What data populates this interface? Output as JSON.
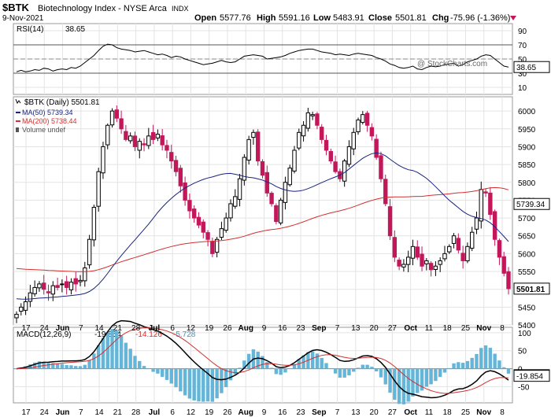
{
  "header": {
    "symbol": "$BTK",
    "name": "Biotechnology Index - NYSE Arca",
    "exchange": "INDX",
    "date": "9-Nov-2021",
    "open_label": "Open",
    "open": "5577.76",
    "high_label": "High",
    "high": "5591.16",
    "low_label": "Low",
    "low": "5483.91",
    "close_label": "Close",
    "close": "5501.81",
    "chg_label": "Chg",
    "chg": "-75.96 (-1.36%)",
    "watermark": "@ StockCharts.com"
  },
  "rsi": {
    "label": "RSI(14)",
    "value": "38.65",
    "ticks": [
      "90",
      "70",
      "50",
      "30",
      "10"
    ],
    "flag": "38.65",
    "color": "#000000"
  },
  "price": {
    "legend_title": "$BTK (Daily) 5501.81",
    "legend": [
      {
        "key": "ma50",
        "text": "MA(50) 5739.34",
        "color": "#1a237e"
      },
      {
        "key": "ma200",
        "text": "MA(200) 5738.44",
        "color": "#d32f2f"
      },
      {
        "key": "vol",
        "text": "Volume undef",
        "color": "#555555"
      }
    ],
    "ticks": [
      "6000",
      "5950",
      "5900",
      "5850",
      "5800",
      "5750",
      "5700",
      "5650",
      "5600",
      "5550",
      "5500",
      "5450",
      "5400"
    ],
    "flags": {
      "ma": "5739.34",
      "close": "5501.81"
    }
  },
  "macd": {
    "label": "MACD(12,26,9)",
    "values": [
      "-19.854",
      "-14.126",
      "-5.728"
    ],
    "ticks": [
      "100",
      "50",
      "0",
      "-50"
    ],
    "flags": {
      "macd": "-19.854",
      "signal": "-14.126"
    }
  },
  "xaxis": {
    "labels": [
      {
        "t": "17",
        "b": false
      },
      {
        "t": "24",
        "b": false
      },
      {
        "t": "Jun",
        "b": true
      },
      {
        "t": "7",
        "b": false
      },
      {
        "t": "14",
        "b": false
      },
      {
        "t": "21",
        "b": false
      },
      {
        "t": "28",
        "b": false
      },
      {
        "t": "Jul",
        "b": true
      },
      {
        "t": "6",
        "b": false
      },
      {
        "t": "12",
        "b": false
      },
      {
        "t": "19",
        "b": false
      },
      {
        "t": "26",
        "b": false
      },
      {
        "t": "Aug",
        "b": true
      },
      {
        "t": "9",
        "b": false
      },
      {
        "t": "16",
        "b": false
      },
      {
        "t": "23",
        "b": false
      },
      {
        "t": "Sep",
        "b": true
      },
      {
        "t": "7",
        "b": false
      },
      {
        "t": "13",
        "b": false
      },
      {
        "t": "20",
        "b": false
      },
      {
        "t": "27",
        "b": false
      },
      {
        "t": "Oct",
        "b": true
      },
      {
        "t": "11",
        "b": false
      },
      {
        "t": "18",
        "b": false
      },
      {
        "t": "25",
        "b": false
      },
      {
        "t": "Nov",
        "b": true
      },
      {
        "t": "8",
        "b": false
      }
    ]
  },
  "colors": {
    "up": "#000000",
    "down": "#c2185b",
    "ma50": "#1a237e",
    "ma200": "#d32f2f",
    "rsi_fill": "#3f7f3f",
    "hist": "#64b5d8"
  },
  "chart_data": [
    {
      "type": "line",
      "title": "RSI(14) 38.65",
      "ylim": [
        0,
        100
      ],
      "overbought": 70,
      "oversold": 30,
      "series": [
        {
          "name": "RSI(14)",
          "values": [
            32,
            34,
            32,
            33,
            35,
            34,
            37,
            36,
            33,
            35,
            36,
            35,
            38,
            37,
            40,
            45,
            50,
            55,
            62,
            68,
            71,
            70,
            66,
            64,
            63,
            62,
            60,
            61,
            62,
            60,
            58,
            56,
            57,
            55,
            52,
            54,
            53,
            50,
            48,
            46,
            44,
            42,
            43,
            44,
            46,
            48,
            46,
            45,
            46,
            50,
            54,
            55,
            56,
            55,
            54,
            50,
            51,
            52,
            53,
            55,
            58,
            60,
            62,
            63,
            64,
            64,
            62,
            60,
            59,
            58,
            56,
            57,
            56,
            55,
            57,
            58,
            57,
            56,
            55,
            52,
            50,
            47,
            43,
            41,
            38,
            37,
            38,
            40,
            36,
            35,
            38,
            40,
            39,
            40,
            42,
            43,
            44,
            40,
            42,
            46,
            48,
            50,
            54,
            56,
            55,
            50,
            45,
            40,
            38.65
          ]
        }
      ]
    },
    {
      "type": "candlestick",
      "title": "$BTK (Daily) 5501.81",
      "ylim": [
        5400,
        6040
      ],
      "ohlc_close": [
        5430,
        5450,
        5465,
        5490,
        5505,
        5515,
        5500,
        5490,
        5510,
        5505,
        5515,
        5505,
        5520,
        5515,
        5525,
        5560,
        5640,
        5730,
        5830,
        5900,
        5960,
        6000,
        5980,
        5950,
        5920,
        5930,
        5900,
        5915,
        5905,
        5930,
        5920,
        5935,
        5905,
        5890,
        5860,
        5830,
        5790,
        5750,
        5720,
        5700,
        5680,
        5660,
        5640,
        5600,
        5640,
        5670,
        5700,
        5740,
        5760,
        5810,
        5870,
        5920,
        5940,
        5860,
        5820,
        5770,
        5740,
        5690,
        5750,
        5800,
        5840,
        5890,
        5940,
        5960,
        5995,
        5990,
        5960,
        5920,
        5890,
        5860,
        5830,
        5810,
        5860,
        5900,
        5940,
        5975,
        5990,
        5960,
        5930,
        5870,
        5810,
        5740,
        5650,
        5590,
        5565,
        5570,
        5590,
        5620,
        5590,
        5565,
        5580,
        5555,
        5565,
        5580,
        5600,
        5620,
        5650,
        5610,
        5580,
        5620,
        5660,
        5700,
        5780,
        5770,
        5710,
        5640,
        5590,
        5545,
        5501.81
      ],
      "series": [
        {
          "name": "MA(50)",
          "last": 5739.34
        },
        {
          "name": "MA(200)",
          "last": 5738.44
        }
      ]
    },
    {
      "type": "line",
      "title": "MACD(12,26,9) -19.854, -14.126, -5.728",
      "ylim": [
        -95,
        115
      ],
      "series": [
        {
          "name": "MACD",
          "last": -19.854
        },
        {
          "name": "Signal",
          "last": -14.126
        },
        {
          "name": "Histogram",
          "last": -5.728
        }
      ]
    }
  ]
}
